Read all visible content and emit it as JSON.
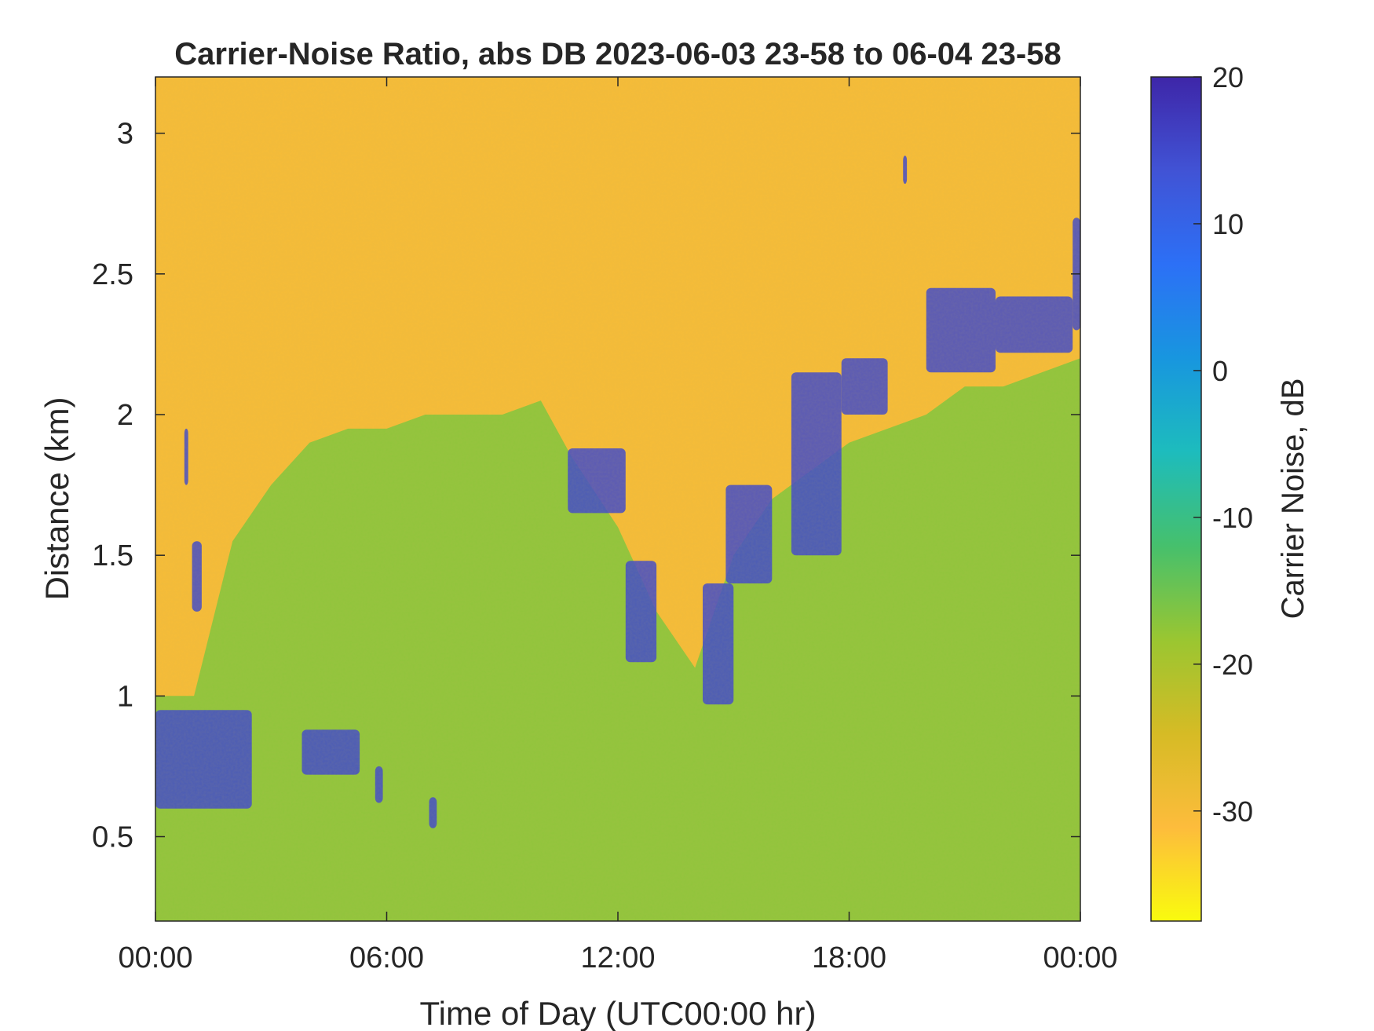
{
  "chart_data": {
    "type": "heatmap",
    "title": "Carrier-Noise Ratio, abs DB 2023-06-03 23-58 to 06-04 23-58",
    "xlabel": "Time of Day (UTC00:00 hr)",
    "ylabel": "Distance (km)",
    "x_tick_labels": [
      "00:00",
      "06:00",
      "12:00",
      "18:00",
      "00:00"
    ],
    "x_ticks_hours": [
      0,
      6,
      12,
      18,
      24
    ],
    "xlim_hours": [
      0,
      24
    ],
    "y_ticks": [
      0.5,
      1,
      1.5,
      2,
      2.5,
      3
    ],
    "y_tick_labels": [
      "0.5",
      "1",
      "1.5",
      "2",
      "2.5",
      "3"
    ],
    "ylim": [
      0.2,
      3.2
    ],
    "colorbar": {
      "label": "Carrier Noise, dB",
      "ticks": [
        20,
        10,
        0,
        -10,
        -20,
        -30
      ],
      "tick_labels": [
        "20",
        "10",
        "0",
        "-10",
        "-20",
        "-30"
      ],
      "range": [
        -37.5,
        20
      ],
      "colormap": "parula-reversed",
      "colors": [
        "#f9fb0e",
        "#fdbc3c",
        "#d6bb25",
        "#9ac631",
        "#46c06c",
        "#1dbcbd",
        "#1896df",
        "#2c70f6",
        "#4153d5",
        "#3e26a8"
      ]
    },
    "grid": false,
    "regions": {
      "background_clear_air_db": -30,
      "boundary_layer_db": -17,
      "cloud_db": 15
    },
    "boundary_layer_top_km": [
      {
        "t": 0.0,
        "h": 1.0
      },
      {
        "t": 1.0,
        "h": 1.0
      },
      {
        "t": 2.0,
        "h": 1.55
      },
      {
        "t": 3.0,
        "h": 1.75
      },
      {
        "t": 4.0,
        "h": 1.9
      },
      {
        "t": 5.0,
        "h": 1.95
      },
      {
        "t": 6.0,
        "h": 1.95
      },
      {
        "t": 7.0,
        "h": 2.0
      },
      {
        "t": 8.0,
        "h": 2.0
      },
      {
        "t": 9.0,
        "h": 2.0
      },
      {
        "t": 10.0,
        "h": 2.05
      },
      {
        "t": 10.8,
        "h": 1.85
      },
      {
        "t": 12.0,
        "h": 1.6
      },
      {
        "t": 13.0,
        "h": 1.3
      },
      {
        "t": 14.0,
        "h": 1.1
      },
      {
        "t": 15.0,
        "h": 1.5
      },
      {
        "t": 16.0,
        "h": 1.7
      },
      {
        "t": 17.0,
        "h": 1.8
      },
      {
        "t": 18.0,
        "h": 1.9
      },
      {
        "t": 19.0,
        "h": 1.95
      },
      {
        "t": 20.0,
        "h": 2.0
      },
      {
        "t": 21.0,
        "h": 2.1
      },
      {
        "t": 22.0,
        "h": 2.1
      },
      {
        "t": 23.0,
        "h": 2.15
      },
      {
        "t": 24.0,
        "h": 2.2
      }
    ],
    "cloud_layers": [
      {
        "t0": 0.0,
        "t1": 2.5,
        "h0": 0.6,
        "h1": 0.95
      },
      {
        "t0": 3.8,
        "t1": 5.3,
        "h0": 0.72,
        "h1": 0.88
      },
      {
        "t0": 5.7,
        "t1": 5.9,
        "h0": 0.62,
        "h1": 0.75
      },
      {
        "t0": 7.1,
        "t1": 7.3,
        "h0": 0.53,
        "h1": 0.64
      },
      {
        "t0": 0.75,
        "t1": 0.85,
        "h0": 1.75,
        "h1": 1.95
      },
      {
        "t0": 0.95,
        "t1": 1.2,
        "h0": 1.3,
        "h1": 1.55
      },
      {
        "t0": 10.7,
        "t1": 12.2,
        "h0": 1.65,
        "h1": 1.88
      },
      {
        "t0": 12.2,
        "t1": 13.0,
        "h0": 1.12,
        "h1": 1.48
      },
      {
        "t0": 14.2,
        "t1": 15.0,
        "h0": 0.97,
        "h1": 1.4
      },
      {
        "t0": 14.8,
        "t1": 16.0,
        "h0": 1.4,
        "h1": 1.75
      },
      {
        "t0": 16.5,
        "t1": 17.8,
        "h0": 1.5,
        "h1": 2.15
      },
      {
        "t0": 17.8,
        "t1": 19.0,
        "h0": 2.0,
        "h1": 2.2
      },
      {
        "t0": 20.0,
        "t1": 21.8,
        "h0": 2.15,
        "h1": 2.45
      },
      {
        "t0": 21.8,
        "t1": 23.8,
        "h0": 2.22,
        "h1": 2.42
      },
      {
        "t0": 23.8,
        "t1": 24.0,
        "h0": 2.3,
        "h1": 2.7
      },
      {
        "t0": 19.4,
        "t1": 19.5,
        "h0": 2.82,
        "h1": 2.92
      }
    ]
  }
}
